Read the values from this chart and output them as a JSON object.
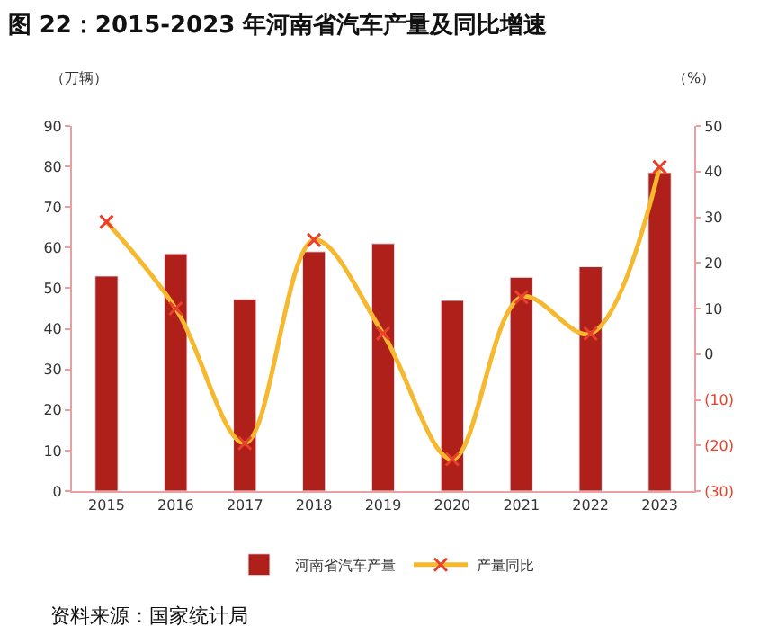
{
  "chart_data": {
    "type": "bar",
    "title": "图 22：2015-2023 年河南省汽车产量及同比增速",
    "categories": [
      "2015",
      "2016",
      "2017",
      "2018",
      "2019",
      "2020",
      "2021",
      "2022",
      "2023"
    ],
    "series": [
      {
        "name": "河南省汽车产量",
        "color": "#b0201a",
        "values": [
          53,
          58.5,
          47.3,
          59,
          61,
          47,
          52.7,
          55.3,
          78.5
        ]
      },
      {
        "name": "产量同比",
        "type": "line",
        "axis": "y2",
        "color": "#f5b82e",
        "marker": "cross",
        "values": [
          29,
          10,
          -19.5,
          25,
          4.5,
          -23,
          12.5,
          4.5,
          41
        ]
      }
    ],
    "ylabel": "（万辆）",
    "y2label": "（%）",
    "ylim": [
      0,
      90
    ],
    "yticks": [
      0,
      10,
      20,
      30,
      40,
      50,
      60,
      70,
      80,
      90
    ],
    "y2lim": [
      -30,
      50
    ],
    "y2ticks": [
      {
        "value": -30,
        "label": "(30)"
      },
      {
        "value": -20,
        "label": "(20)"
      },
      {
        "value": -10,
        "label": "(10)"
      },
      0,
      10,
      20,
      30,
      40,
      50
    ],
    "legend": "bottom",
    "annotations": [
      "资料来源：国家统计局"
    ]
  }
}
